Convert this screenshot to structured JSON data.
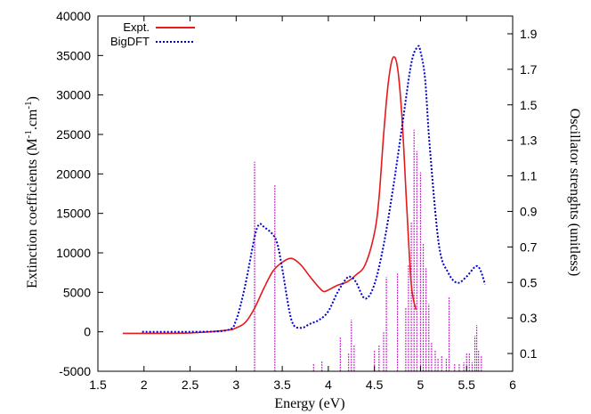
{
  "chart_data": {
    "type": "line",
    "xlabel": "Energy (eV)",
    "ylabel": "Extinction coefficients (M",
    "ylabel_sup1": "-1",
    "ylabel_mid": ".cm",
    "ylabel_sup2": "-1",
    "ylabel_end": ")",
    "y2label": "Oscillator strenghts (unitless)",
    "xlim": [
      1.5,
      6
    ],
    "ylim": [
      -5000,
      40000
    ],
    "y2lim": [
      0,
      2.0
    ],
    "x_ticks": [
      "1.5",
      "2",
      "2.5",
      "3",
      "3.5",
      "4",
      "4.5",
      "5",
      "5.5",
      "6"
    ],
    "y_ticks": [
      "-5000",
      "0",
      "5000",
      "10000",
      "15000",
      "20000",
      "25000",
      "30000",
      "35000",
      "40000"
    ],
    "y2_ticks": [
      "0.1",
      "0.3",
      "0.5",
      "0.7",
      "0.9",
      "1.1",
      "1.3",
      "1.5",
      "1.7",
      "1.9"
    ],
    "legend_position": "top-left",
    "series": [
      {
        "name": "Expt.",
        "color": "#e41a1c",
        "style": "solid",
        "x": [
          1.77,
          2.0,
          2.5,
          2.9,
          3.0,
          3.1,
          3.2,
          3.3,
          3.4,
          3.5,
          3.6,
          3.7,
          3.8,
          3.9,
          3.95,
          4.0,
          4.1,
          4.2,
          4.3,
          4.4,
          4.5,
          4.55,
          4.6,
          4.65,
          4.7,
          4.75,
          4.8,
          4.85,
          4.9,
          4.95
        ],
        "y": [
          -200,
          -200,
          -150,
          200,
          500,
          1200,
          3000,
          5500,
          7700,
          8800,
          9300,
          8500,
          7000,
          5600,
          5100,
          5300,
          5900,
          6300,
          7200,
          8500,
          12500,
          17000,
          25000,
          31500,
          34700,
          33500,
          27000,
          16000,
          6000,
          2800
        ]
      },
      {
        "name": "BigDFT",
        "color": "#0000cc",
        "style": "dotted",
        "x": [
          1.98,
          2.5,
          2.9,
          3.0,
          3.1,
          3.2,
          3.25,
          3.3,
          3.4,
          3.45,
          3.5,
          3.6,
          3.7,
          3.8,
          3.9,
          4.0,
          4.1,
          4.2,
          4.25,
          4.3,
          4.4,
          4.5,
          4.6,
          4.7,
          4.8,
          4.9,
          4.97,
          5.0,
          5.05,
          5.1,
          5.2,
          5.3,
          5.4,
          5.5,
          5.6,
          5.65,
          5.7
        ],
        "y": [
          0,
          0,
          200,
          1500,
          6000,
          12000,
          13600,
          13300,
          12300,
          11000,
          8000,
          1500,
          500,
          1000,
          1500,
          2600,
          5000,
          6800,
          6900,
          6300,
          4200,
          6000,
          11000,
          18000,
          26000,
          34000,
          36100,
          35500,
          32000,
          23500,
          11000,
          7500,
          6200,
          7000,
          8300,
          7800,
          6000
        ]
      }
    ],
    "oscillator_sticks": {
      "color": "#cc33cc",
      "x": [
        3.2,
        3.42,
        3.84,
        3.93,
        4.13,
        4.22,
        4.25,
        4.28,
        4.5,
        4.55,
        4.6,
        4.63,
        4.75,
        4.84,
        4.87,
        4.9,
        4.93,
        4.96,
        5.0,
        5.03,
        5.06,
        5.09,
        5.12,
        5.16,
        5.19,
        5.23,
        5.28,
        5.31,
        5.37,
        5.42,
        5.47,
        5.5,
        5.53,
        5.56,
        5.59,
        5.61,
        5.63,
        5.66
      ],
      "f": [
        1.18,
        1.05,
        0.04,
        0.06,
        0.19,
        0.1,
        0.29,
        0.15,
        0.12,
        0.15,
        0.22,
        0.53,
        0.55,
        0.36,
        0.6,
        0.84,
        1.36,
        1.24,
        1.12,
        0.72,
        0.58,
        0.38,
        0.16,
        0.12,
        0.07,
        0.09,
        0.07,
        0.42,
        0.04,
        0.04,
        0.05,
        0.1,
        0.1,
        0.05,
        0.2,
        0.26,
        0.12,
        0.09
      ]
    }
  }
}
